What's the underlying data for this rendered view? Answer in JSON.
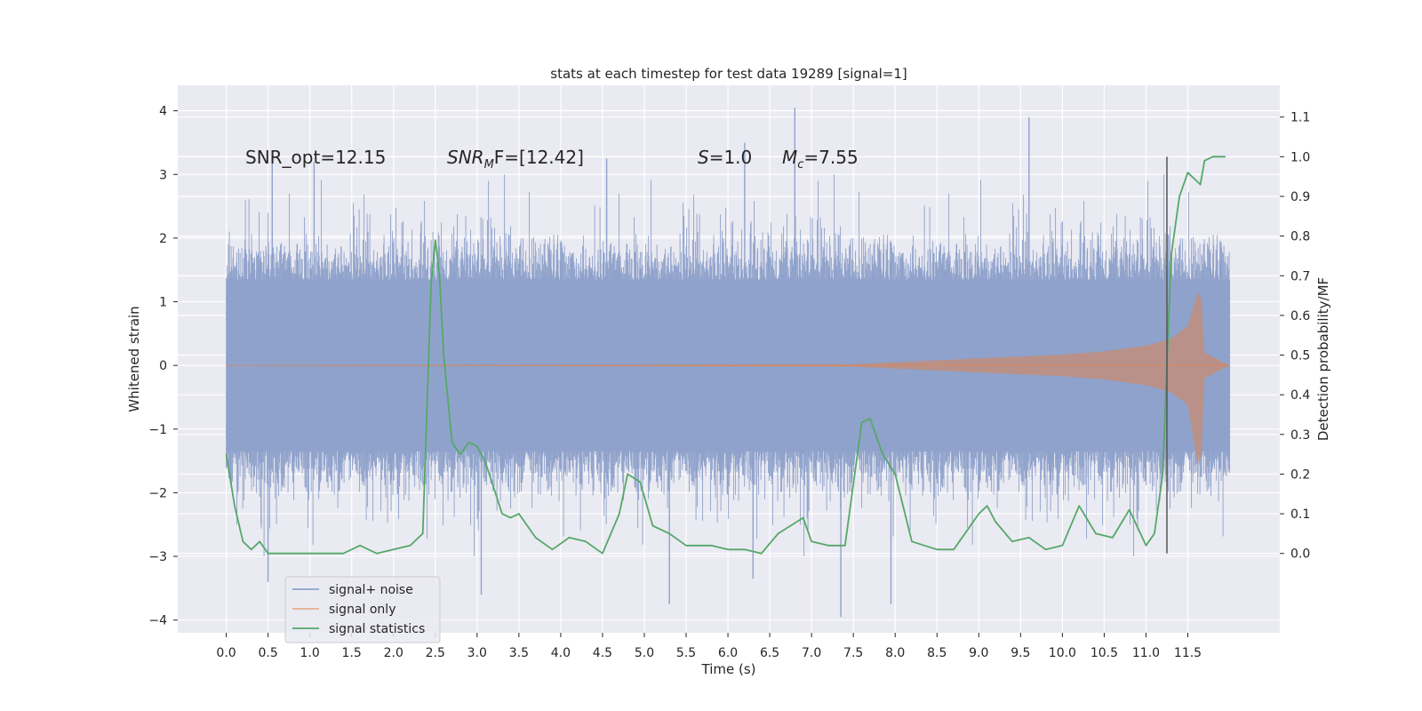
{
  "chart_data": {
    "type": "line",
    "title": "stats at each timestep for test data 19289 [signal=1]",
    "xlabel": "Time (s)",
    "ylabel": "Whitened strain",
    "ylabel_right": "Detection probability/MF",
    "xlim": [
      -0.58,
      12.6
    ],
    "ylim": [
      -4.2,
      4.4
    ],
    "ylim_right": [
      -0.2,
      1.18
    ],
    "x_ticks": [
      "0.0",
      "0.5",
      "1.0",
      "1.5",
      "2.0",
      "2.5",
      "3.0",
      "3.5",
      "4.0",
      "4.5",
      "5.0",
      "5.5",
      "6.0",
      "6.5",
      "7.0",
      "7.5",
      "8.0",
      "8.5",
      "9.0",
      "9.5",
      "10.0",
      "10.5",
      "11.0",
      "11.5"
    ],
    "y_ticks": [
      "−4",
      "−3",
      "−2",
      "−1",
      "0",
      "1",
      "2",
      "3",
      "4"
    ],
    "y_ticks_right": [
      "0.0",
      "0.1",
      "0.2",
      "0.3",
      "0.4",
      "0.5",
      "0.6",
      "0.7",
      "0.8",
      "0.9",
      "1.0",
      "1.1"
    ],
    "annotations": {
      "snr_opt": "SNR_opt=12.15",
      "snr_mf_label": "SNR",
      "snr_mf_sub": "M",
      "snr_mf_rest": "F=[12.42]",
      "s_label": "S",
      "s_rest": "=1.0",
      "mc_label": "M",
      "mc_sub": "c",
      "mc_rest": "=7.55"
    },
    "vline_x": 11.25,
    "grid": true,
    "legend_position": "lower-left",
    "colors": {
      "signal_noise": "#8fa2cb",
      "signal_only": "#dd8452",
      "signal_statistics": "#55a868",
      "vline": "#555555",
      "background": "#eaeaf2",
      "grid": "#ffffff"
    },
    "series": [
      {
        "name": "signal+ noise",
        "description": "dense whitened strain noise, amplitude envelope ~±1.3 with spikes up to ~±4",
        "envelope": {
          "x": [
            0.0,
            12.0
          ],
          "core": [
            -1.35,
            1.35
          ]
        },
        "spikes_max": [
          [
            0.55,
            3.3
          ],
          [
            1.05,
            3.2
          ],
          [
            6.8,
            4.05
          ],
          [
            9.6,
            3.9
          ],
          [
            6.2,
            3.5
          ],
          [
            4.55,
            3.25
          ]
        ],
        "spikes_min": [
          [
            0.5,
            -3.4
          ],
          [
            3.05,
            -3.6
          ],
          [
            5.3,
            -3.75
          ],
          [
            7.35,
            -3.95
          ],
          [
            7.95,
            -3.75
          ],
          [
            6.3,
            -3.35
          ]
        ]
      },
      {
        "name": "signal only",
        "description": "chirp signal, amplitude grows toward merger near t≈11.65s",
        "x": [
          0.0,
          7.5,
          8.5,
          9.5,
          10.0,
          10.5,
          11.0,
          11.3,
          11.5,
          11.62,
          11.66,
          11.7,
          12.0
        ],
        "amp": [
          0.0,
          0.02,
          0.08,
          0.14,
          0.17,
          0.22,
          0.31,
          0.42,
          0.62,
          1.15,
          1.05,
          0.2,
          0.0
        ]
      },
      {
        "name": "signal statistics",
        "x": [
          0.0,
          0.1,
          0.2,
          0.3,
          0.4,
          0.5,
          0.6,
          0.8,
          1.0,
          1.2,
          1.4,
          1.6,
          1.8,
          2.0,
          2.2,
          2.35,
          2.45,
          2.5,
          2.55,
          2.6,
          2.7,
          2.8,
          2.9,
          3.0,
          3.1,
          3.3,
          3.4,
          3.5,
          3.7,
          3.9,
          4.1,
          4.3,
          4.5,
          4.7,
          4.8,
          4.95,
          5.1,
          5.3,
          5.5,
          5.8,
          6.0,
          6.2,
          6.4,
          6.6,
          6.75,
          6.9,
          7.0,
          7.2,
          7.4,
          7.6,
          7.7,
          7.85,
          8.0,
          8.2,
          8.5,
          8.7,
          8.9,
          9.0,
          9.1,
          9.2,
          9.4,
          9.6,
          9.8,
          10.0,
          10.2,
          10.4,
          10.6,
          10.8,
          11.0,
          11.1,
          11.2,
          11.3,
          11.4,
          11.5,
          11.6,
          11.65,
          11.7,
          11.8,
          11.95
        ],
        "values": [
          0.25,
          0.12,
          0.03,
          0.01,
          0.03,
          0.0,
          0.0,
          0.0,
          0.0,
          0.0,
          0.0,
          0.02,
          0.0,
          0.01,
          0.02,
          0.05,
          0.68,
          0.79,
          0.7,
          0.5,
          0.28,
          0.25,
          0.28,
          0.27,
          0.23,
          0.1,
          0.09,
          0.1,
          0.04,
          0.01,
          0.04,
          0.03,
          0.0,
          0.1,
          0.2,
          0.18,
          0.07,
          0.05,
          0.02,
          0.02,
          0.01,
          0.01,
          0.0,
          0.05,
          0.07,
          0.09,
          0.03,
          0.02,
          0.02,
          0.33,
          0.34,
          0.25,
          0.2,
          0.03,
          0.01,
          0.01,
          0.07,
          0.1,
          0.12,
          0.08,
          0.03,
          0.04,
          0.01,
          0.02,
          0.12,
          0.05,
          0.04,
          0.11,
          0.02,
          0.05,
          0.2,
          0.75,
          0.9,
          0.96,
          0.94,
          0.93,
          0.99,
          1.0,
          1.0
        ]
      }
    ]
  }
}
